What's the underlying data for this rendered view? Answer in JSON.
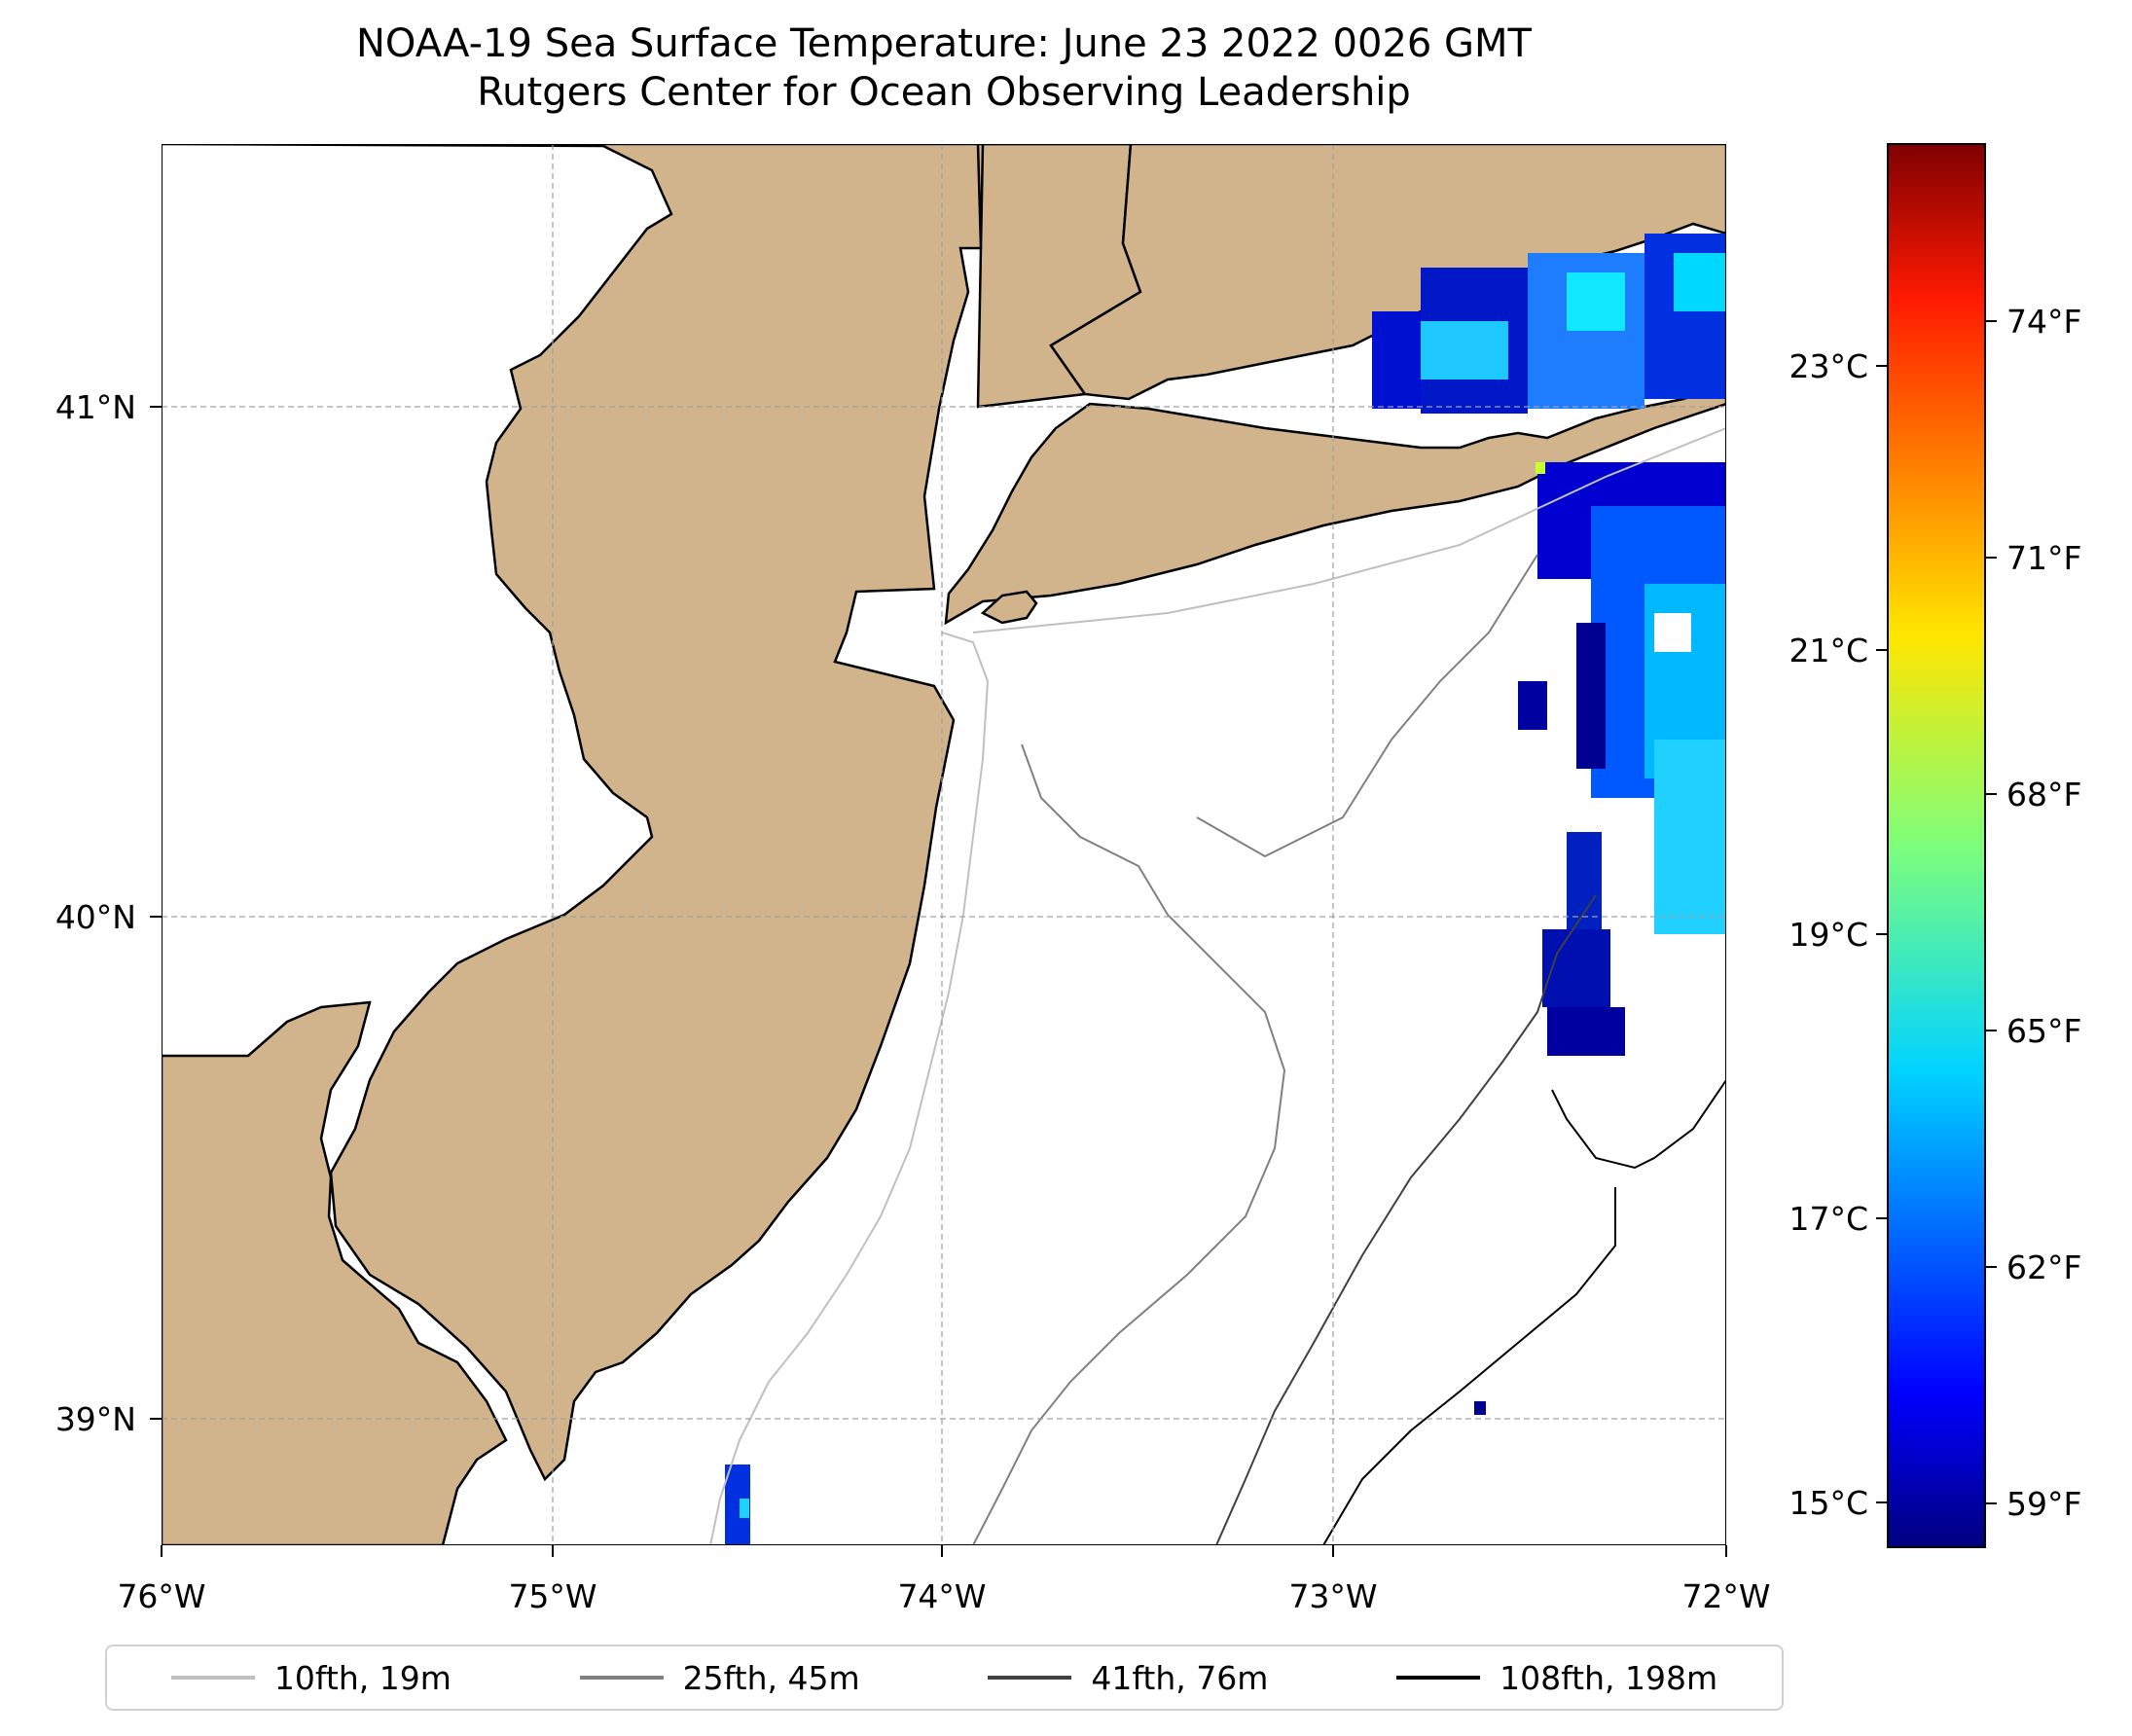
{
  "title": {
    "line1": "NOAA-19 Sea Surface Temperature: June 23 2022 0026 GMT",
    "line2": "Rutgers Center for Ocean Observing Leadership"
  },
  "axes": {
    "lon_labels": [
      "76°W",
      "75°W",
      "74°W",
      "73°W",
      "72°W"
    ],
    "lat_labels": [
      "41°N",
      "40°N",
      "39°N"
    ]
  },
  "colorbar": {
    "celsius_labels": [
      "23°C",
      "21°C",
      "19°C",
      "17°C",
      "15°C"
    ],
    "fahrenheit_labels": [
      "74°F",
      "71°F",
      "68°F",
      "65°F",
      "62°F",
      "59°F"
    ]
  },
  "legend": {
    "items": [
      {
        "label": "10fth, 19m",
        "color": "#c0c0c0"
      },
      {
        "label": "25fth, 45m",
        "color": "#808080"
      },
      {
        "label": "41fth, 76m",
        "color": "#404040"
      },
      {
        "label": "108fth, 198m",
        "color": "#000000"
      }
    ]
  },
  "colors": {
    "land": "#d2b48c",
    "water": "#ffffff",
    "grid": "#a0a0a0"
  }
}
